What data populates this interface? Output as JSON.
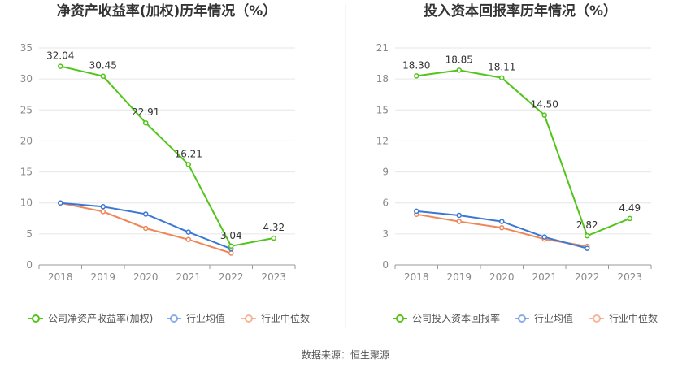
{
  "source_label": "数据来源：恒生聚源",
  "chart_data": [
    {
      "type": "line",
      "title": "净资产收益率(加权)历年情况（%）",
      "categories": [
        "2018",
        "2019",
        "2020",
        "2021",
        "2022",
        "2023"
      ],
      "ylim": [
        0,
        35
      ],
      "yticks": [
        0,
        5,
        10,
        15,
        20,
        25,
        30,
        35
      ],
      "grid": true,
      "legend_position": "bottom",
      "series": [
        {
          "name": "公司净资产收益率(加权)",
          "color": "#52c41a",
          "values": [
            32.04,
            30.45,
            22.91,
            16.21,
            3.04,
            4.32
          ],
          "labels": [
            "32.04",
            "30.45",
            "22.91",
            "16.21",
            "3.04",
            "4.32"
          ]
        },
        {
          "name": "行业均值",
          "color": "#3a78d4",
          "values": [
            10.0,
            9.4,
            8.2,
            5.3,
            2.6,
            null
          ]
        },
        {
          "name": "行业中位数",
          "color": "#f0875a",
          "values": [
            10.0,
            8.6,
            5.9,
            4.1,
            1.9,
            null
          ]
        }
      ]
    },
    {
      "type": "line",
      "title": "投入资本回报率历年情况（%）",
      "categories": [
        "2018",
        "2019",
        "2020",
        "2021",
        "2022",
        "2023"
      ],
      "ylim": [
        0,
        21
      ],
      "yticks": [
        0,
        3,
        6,
        9,
        12,
        15,
        18,
        21
      ],
      "grid": true,
      "legend_position": "bottom",
      "series": [
        {
          "name": "公司投入资本回报率",
          "color": "#52c41a",
          "values": [
            18.3,
            18.85,
            18.11,
            14.5,
            2.82,
            4.49
          ],
          "labels": [
            "18.30",
            "18.85",
            "18.11",
            "14.50",
            "2.82",
            "4.49"
          ]
        },
        {
          "name": "行业均值",
          "color": "#3a78d4",
          "values": [
            5.2,
            4.8,
            4.2,
            2.7,
            1.6,
            null
          ]
        },
        {
          "name": "行业中位数",
          "color": "#f0875a",
          "values": [
            4.9,
            4.2,
            3.6,
            2.5,
            1.8,
            null
          ]
        }
      ]
    }
  ]
}
